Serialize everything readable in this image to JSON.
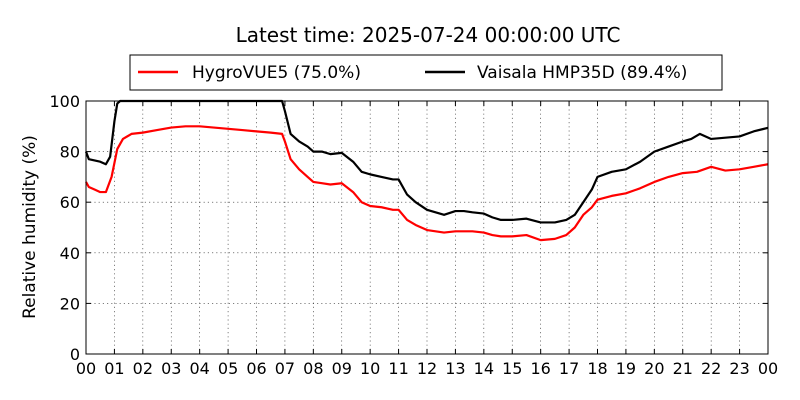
{
  "chart_data": {
    "type": "line",
    "title": "Latest time: 2025-07-24 00:00:00 UTC",
    "ylabel": "Relative humidity (%)",
    "xlabel": "",
    "xlim": [
      0,
      24
    ],
    "ylim": [
      0,
      100
    ],
    "x_tick_labels": [
      "00",
      "01",
      "02",
      "03",
      "04",
      "05",
      "06",
      "07",
      "08",
      "09",
      "10",
      "11",
      "12",
      "13",
      "14",
      "15",
      "16",
      "17",
      "18",
      "19",
      "20",
      "21",
      "22",
      "23",
      "00"
    ],
    "y_ticks": [
      0,
      20,
      40,
      60,
      80,
      100
    ],
    "grid": true,
    "legend_position": "top",
    "series": [
      {
        "name": "HygroVUE5 (75.0%)",
        "color": "#ff0000",
        "x": [
          0,
          0.1,
          0.3,
          0.5,
          0.7,
          0.9,
          1.1,
          1.3,
          1.6,
          2.0,
          2.5,
          3.0,
          3.5,
          4.0,
          4.5,
          5.0,
          5.5,
          6.0,
          6.5,
          6.9,
          7.0,
          7.2,
          7.5,
          7.8,
          8.0,
          8.3,
          8.6,
          9.0,
          9.4,
          9.7,
          10.0,
          10.4,
          10.8,
          11.0,
          11.3,
          11.6,
          12.0,
          12.3,
          12.6,
          13.0,
          13.3,
          13.6,
          14.0,
          14.3,
          14.6,
          15.0,
          15.5,
          16.0,
          16.5,
          16.9,
          17.2,
          17.5,
          17.8,
          18.0,
          18.5,
          19.0,
          19.5,
          20.0,
          20.5,
          21.0,
          21.5,
          22.0,
          22.5,
          23.0,
          23.5,
          24.0
        ],
        "y": [
          68,
          66,
          65,
          64,
          64,
          70,
          81,
          85,
          87,
          87.5,
          88.5,
          89.5,
          90,
          90,
          89.5,
          89,
          88.5,
          88,
          87.5,
          87,
          84,
          77,
          73,
          70,
          68,
          67.5,
          67,
          67.5,
          64,
          60,
          58.5,
          58,
          57,
          57,
          53,
          51,
          49,
          48.5,
          48,
          48.5,
          48.5,
          48.5,
          48,
          47,
          46.5,
          46.5,
          47,
          45,
          45.5,
          47,
          50,
          55,
          58,
          61,
          62.5,
          63.5,
          65.5,
          68,
          70,
          71.5,
          72,
          74,
          72.5,
          73,
          74,
          75
        ]
      },
      {
        "name": "Vaisala HMP35D (89.4%)",
        "color": "#000000",
        "x": [
          0,
          0.1,
          0.3,
          0.5,
          0.7,
          0.85,
          1.0,
          1.1,
          1.2,
          1.3,
          6.9,
          7.0,
          7.2,
          7.5,
          7.8,
          8.0,
          8.3,
          8.6,
          9.0,
          9.4,
          9.7,
          10.0,
          10.4,
          10.8,
          11.0,
          11.3,
          11.6,
          12.0,
          12.3,
          12.6,
          13.0,
          13.3,
          13.6,
          14.0,
          14.3,
          14.6,
          15.0,
          15.5,
          16.0,
          16.5,
          16.9,
          17.2,
          17.5,
          17.8,
          18.0,
          18.5,
          19.0,
          19.5,
          20.0,
          20.5,
          21.0,
          21.3,
          21.6,
          22.0,
          22.5,
          23.0,
          23.5,
          24.0
        ],
        "y": [
          80,
          77,
          76.5,
          76,
          75,
          78,
          92,
          99,
          100,
          100,
          100,
          96,
          87,
          84,
          82,
          80,
          80,
          79,
          79.5,
          76,
          72,
          71,
          70,
          69,
          69,
          63,
          60,
          57,
          56,
          55,
          56.5,
          56.5,
          56,
          55.5,
          54,
          53,
          53,
          53.5,
          52,
          52,
          53,
          55,
          60,
          65,
          70,
          72,
          73,
          76,
          80,
          82,
          84,
          85,
          87,
          85,
          85.5,
          86,
          88,
          89.4
        ]
      }
    ]
  }
}
